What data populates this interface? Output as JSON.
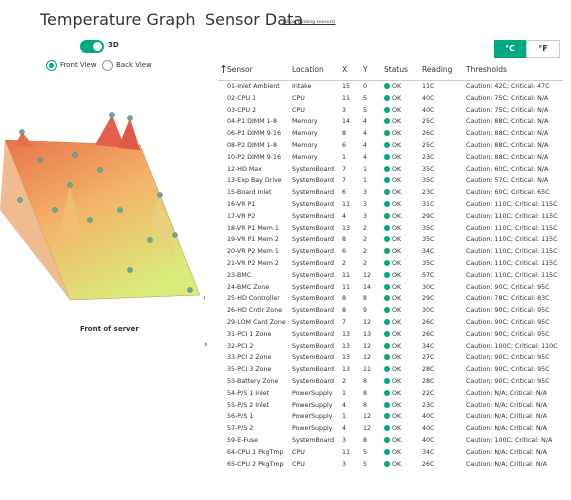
{
  "left_panel": {
    "title": "Temperature Graph",
    "toggle_label": "3D",
    "view_options": [
      "Front View",
      "Back View"
    ],
    "caption": "Front of server"
  },
  "right_panel": {
    "title": "Sensor Data",
    "link": "(show missing sensors)",
    "unit_buttons": [
      "°C",
      "°F"
    ]
  },
  "table": {
    "columns": [
      "Sensor",
      "Location",
      "X",
      "Y",
      "Status",
      "Reading",
      "Thresholds"
    ],
    "rows": [
      [
        "01-Inlet Ambient",
        "Intake",
        "15",
        "0",
        "OK",
        "11C",
        "Caution: 42C; Critical: 47C"
      ],
      [
        "02-CPU 1",
        "CPU",
        "11",
        "5",
        "OK",
        "40C",
        "Caution: 75C; Critical: N/A"
      ],
      [
        "03-CPU 2",
        "CPU",
        "3",
        "5",
        "OK",
        "40C",
        "Caution: 75C; Critical: N/A"
      ],
      [
        "04-P1 DIMM 1-8",
        "Memory",
        "14",
        "4",
        "OK",
        "25C",
        "Caution: 88C; Critical: N/A"
      ],
      [
        "06-P1 DIMM 9-16",
        "Memory",
        "8",
        "4",
        "OK",
        "26C",
        "Caution: 88C; Critical: N/A"
      ],
      [
        "08-P2 DIMM 1-8",
        "Memory",
        "6",
        "4",
        "OK",
        "25C",
        "Caution: 88C; Critical: N/A"
      ],
      [
        "10-P2 DIMM 9-16",
        "Memory",
        "1",
        "4",
        "OK",
        "23C",
        "Caution: 88C; Critical: N/A"
      ],
      [
        "12-HD Max",
        "SystemBoard",
        "7",
        "1",
        "OK",
        "35C",
        "Caution: 60C; Critical: N/A"
      ],
      [
        "13-Exp Bay Drive",
        "SystemBoard",
        "7",
        "1",
        "OK",
        "35C",
        "Caution: 57C; Critical: N/A"
      ],
      [
        "15-Board Inlet",
        "SystemBoard",
        "6",
        "3",
        "OK",
        "23C",
        "Caution: 60C; Critical: 65C"
      ],
      [
        "16-VR P1",
        "SystemBoard",
        "11",
        "3",
        "OK",
        "31C",
        "Caution: 110C; Critical: 115C"
      ],
      [
        "17-VR P2",
        "SystemBoard",
        "4",
        "3",
        "OK",
        "29C",
        "Caution: 110C; Critical: 115C"
      ],
      [
        "18-VR P1 Mem 1",
        "SystemBoard",
        "13",
        "2",
        "OK",
        "35C",
        "Caution: 110C; Critical: 115C"
      ],
      [
        "19-VR P1 Mem 2",
        "SystemBoard",
        "8",
        "2",
        "OK",
        "35C",
        "Caution: 110C; Critical: 115C"
      ],
      [
        "20-VR P2 Mem 1",
        "SystemBoard",
        "6",
        "2",
        "OK",
        "34C",
        "Caution: 110C; Critical: 115C"
      ],
      [
        "21-VR P2 Mem 2",
        "SystemBoard",
        "2",
        "2",
        "OK",
        "35C",
        "Caution: 110C; Critical: 115C"
      ],
      [
        "23-BMC",
        "SystemBoard",
        "11",
        "12",
        "OK",
        "57C",
        "Caution: 110C; Critical: 115C"
      ],
      [
        "24-BMC Zone",
        "SystemBoard",
        "11",
        "14",
        "OK",
        "30C",
        "Caution: 90C; Critical: 95C"
      ],
      [
        "25-HD Controller",
        "SystemBoard",
        "8",
        "8",
        "OK",
        "29C",
        "Caution: 78C; Critical: 83C"
      ],
      [
        "26-HD Cntlr Zone",
        "SystemBoard",
        "8",
        "9",
        "OK",
        "30C",
        "Caution: 90C; Critical: 95C"
      ],
      [
        "29-LOM Card Zone",
        "SystemBoard",
        "7",
        "12",
        "OK",
        "26C",
        "Caution: 90C; Critical: 95C"
      ],
      [
        "31-PCI 1 Zone",
        "SystemBoard",
        "13",
        "13",
        "OK",
        "26C",
        "Caution: 90C; Critical: 95C"
      ],
      [
        "32-PCI 2",
        "SystemBoard",
        "13",
        "12",
        "OK",
        "34C",
        "Caution: 100C; Critical: 110C"
      ],
      [
        "33-PCI 2 Zone",
        "SystemBoard",
        "13",
        "12",
        "OK",
        "27C",
        "Caution: 90C; Critical: 95C"
      ],
      [
        "35-PCI 3 Zone",
        "SystemBoard",
        "13",
        "11",
        "OK",
        "28C",
        "Caution: 90C; Critical: 95C"
      ],
      [
        "53-Battery Zone",
        "SystemBoard",
        "2",
        "8",
        "OK",
        "28C",
        "Caution: 90C; Critical: 95C"
      ],
      [
        "54-P/S 1 Inlet",
        "PowerSupply",
        "1",
        "8",
        "OK",
        "22C",
        "Caution: N/A; Critical: N/A"
      ],
      [
        "55-P/S 2 Inlet",
        "PowerSupply",
        "4",
        "8",
        "OK",
        "23C",
        "Caution: N/A; Critical: N/A"
      ],
      [
        "56-P/S 1",
        "PowerSupply",
        "1",
        "12",
        "OK",
        "40C",
        "Caution: N/A; Critical: N/A"
      ],
      [
        "57-P/S 2",
        "PowerSupply",
        "4",
        "12",
        "OK",
        "40C",
        "Caution: N/A; Critical: N/A"
      ],
      [
        "59-E-Fuse",
        "SystemBoard",
        "3",
        "8",
        "OK",
        "40C",
        "Caution: 100C; Critical: N/A"
      ],
      [
        "64-CPU 1 PkgTmp",
        "CPU",
        "11",
        "5",
        "OK",
        "34C",
        "Caution: N/A; Critical: N/A"
      ],
      [
        "65-CPU 2 PkgTmp",
        "CPU",
        "3",
        "5",
        "OK",
        "26C",
        "Caution: N/A; Critical: N/A"
      ]
    ]
  }
}
